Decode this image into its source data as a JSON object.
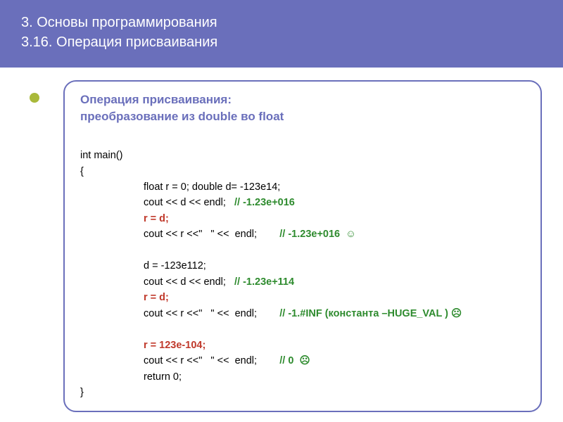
{
  "header": {
    "line1": "3. Основы программирования",
    "line2": "3.16. Операция присваивания"
  },
  "subtitle": {
    "line1": "Операция присваивания:",
    "line2": "преобразование из double во float"
  },
  "code": {
    "l1": "int main()",
    "l2": "{",
    "l3": "float r = 0; double d= -123e14;",
    "l4a": "cout << d << endl;   ",
    "l4b": "// -1.23e+016",
    "l5": "r = d;",
    "l6a": "cout << r <<\"   \" <<  endl;        ",
    "l6b": "// -1.23e+016  ☺",
    "l7": "d = -123e112;",
    "l8a": "cout << d << endl;   ",
    "l8b": "// -1.23e+114",
    "l9": "r = d;",
    "l10a": "cout << r <<\"   \" <<  endl;        ",
    "l10b": "// -1.#INF (константа –HUGE_VAL ) ☹",
    "l11": "r = 123e-104;",
    "l12a": "cout << r <<\"   \" <<  endl;        ",
    "l12b": "// 0  ☹",
    "l13": "return 0;",
    "l14": "}"
  },
  "colors": {
    "header_bg": "#6a6fbb",
    "bullet": "#a9b93a",
    "green": "#2e8b2e",
    "red": "#c0392b"
  }
}
